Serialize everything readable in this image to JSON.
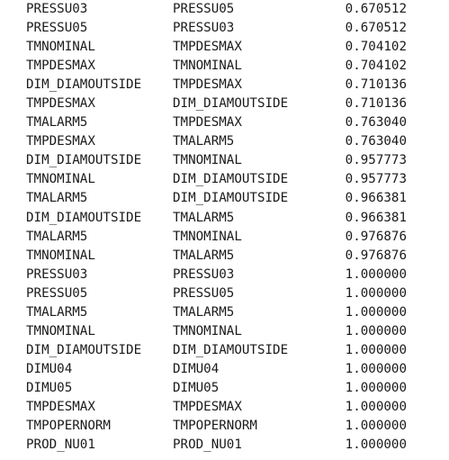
{
  "rows": [
    {
      "a": "PRESSU03",
      "b": "PRESSU05",
      "v": "0.670512"
    },
    {
      "a": "PRESSU05",
      "b": "PRESSU03",
      "v": "0.670512"
    },
    {
      "a": "TMNOMINAL",
      "b": "TMPDESMAX",
      "v": "0.704102"
    },
    {
      "a": "TMPDESMAX",
      "b": "TMNOMINAL",
      "v": "0.704102"
    },
    {
      "a": "DIM_DIAMOUTSIDE",
      "b": "TMPDESMAX",
      "v": "0.710136"
    },
    {
      "a": "TMPDESMAX",
      "b": "DIM_DIAMOUTSIDE",
      "v": "0.710136"
    },
    {
      "a": "TMALARM5",
      "b": "TMPDESMAX",
      "v": "0.763040"
    },
    {
      "a": "TMPDESMAX",
      "b": "TMALARM5",
      "v": "0.763040"
    },
    {
      "a": "DIM_DIAMOUTSIDE",
      "b": "TMNOMINAL",
      "v": "0.957773"
    },
    {
      "a": "TMNOMINAL",
      "b": "DIM_DIAMOUTSIDE",
      "v": "0.957773"
    },
    {
      "a": "TMALARM5",
      "b": "DIM_DIAMOUTSIDE",
      "v": "0.966381"
    },
    {
      "a": "DIM_DIAMOUTSIDE",
      "b": "TMALARM5",
      "v": "0.966381"
    },
    {
      "a": "TMALARM5",
      "b": "TMNOMINAL",
      "v": "0.976876"
    },
    {
      "a": "TMNOMINAL",
      "b": "TMALARM5",
      "v": "0.976876"
    },
    {
      "a": "PRESSU03",
      "b": "PRESSU03",
      "v": "1.000000"
    },
    {
      "a": "PRESSU05",
      "b": "PRESSU05",
      "v": "1.000000"
    },
    {
      "a": "TMALARM5",
      "b": "TMALARM5",
      "v": "1.000000"
    },
    {
      "a": "TMNOMINAL",
      "b": "TMNOMINAL",
      "v": "1.000000"
    },
    {
      "a": "DIM_DIAMOUTSIDE",
      "b": "DIM_DIAMOUTSIDE",
      "v": "1.000000"
    },
    {
      "a": "DIMU04",
      "b": "DIMU04",
      "v": "1.000000"
    },
    {
      "a": "DIMU05",
      "b": "DIMU05",
      "v": "1.000000"
    },
    {
      "a": "TMPDESMAX",
      "b": "TMPDESMAX",
      "v": "1.000000"
    },
    {
      "a": "TMPOPERNORM",
      "b": "TMPOPERNORM",
      "v": "1.000000"
    },
    {
      "a": "PROD_NU01",
      "b": "PROD_NU01",
      "v": "1.000000"
    }
  ]
}
